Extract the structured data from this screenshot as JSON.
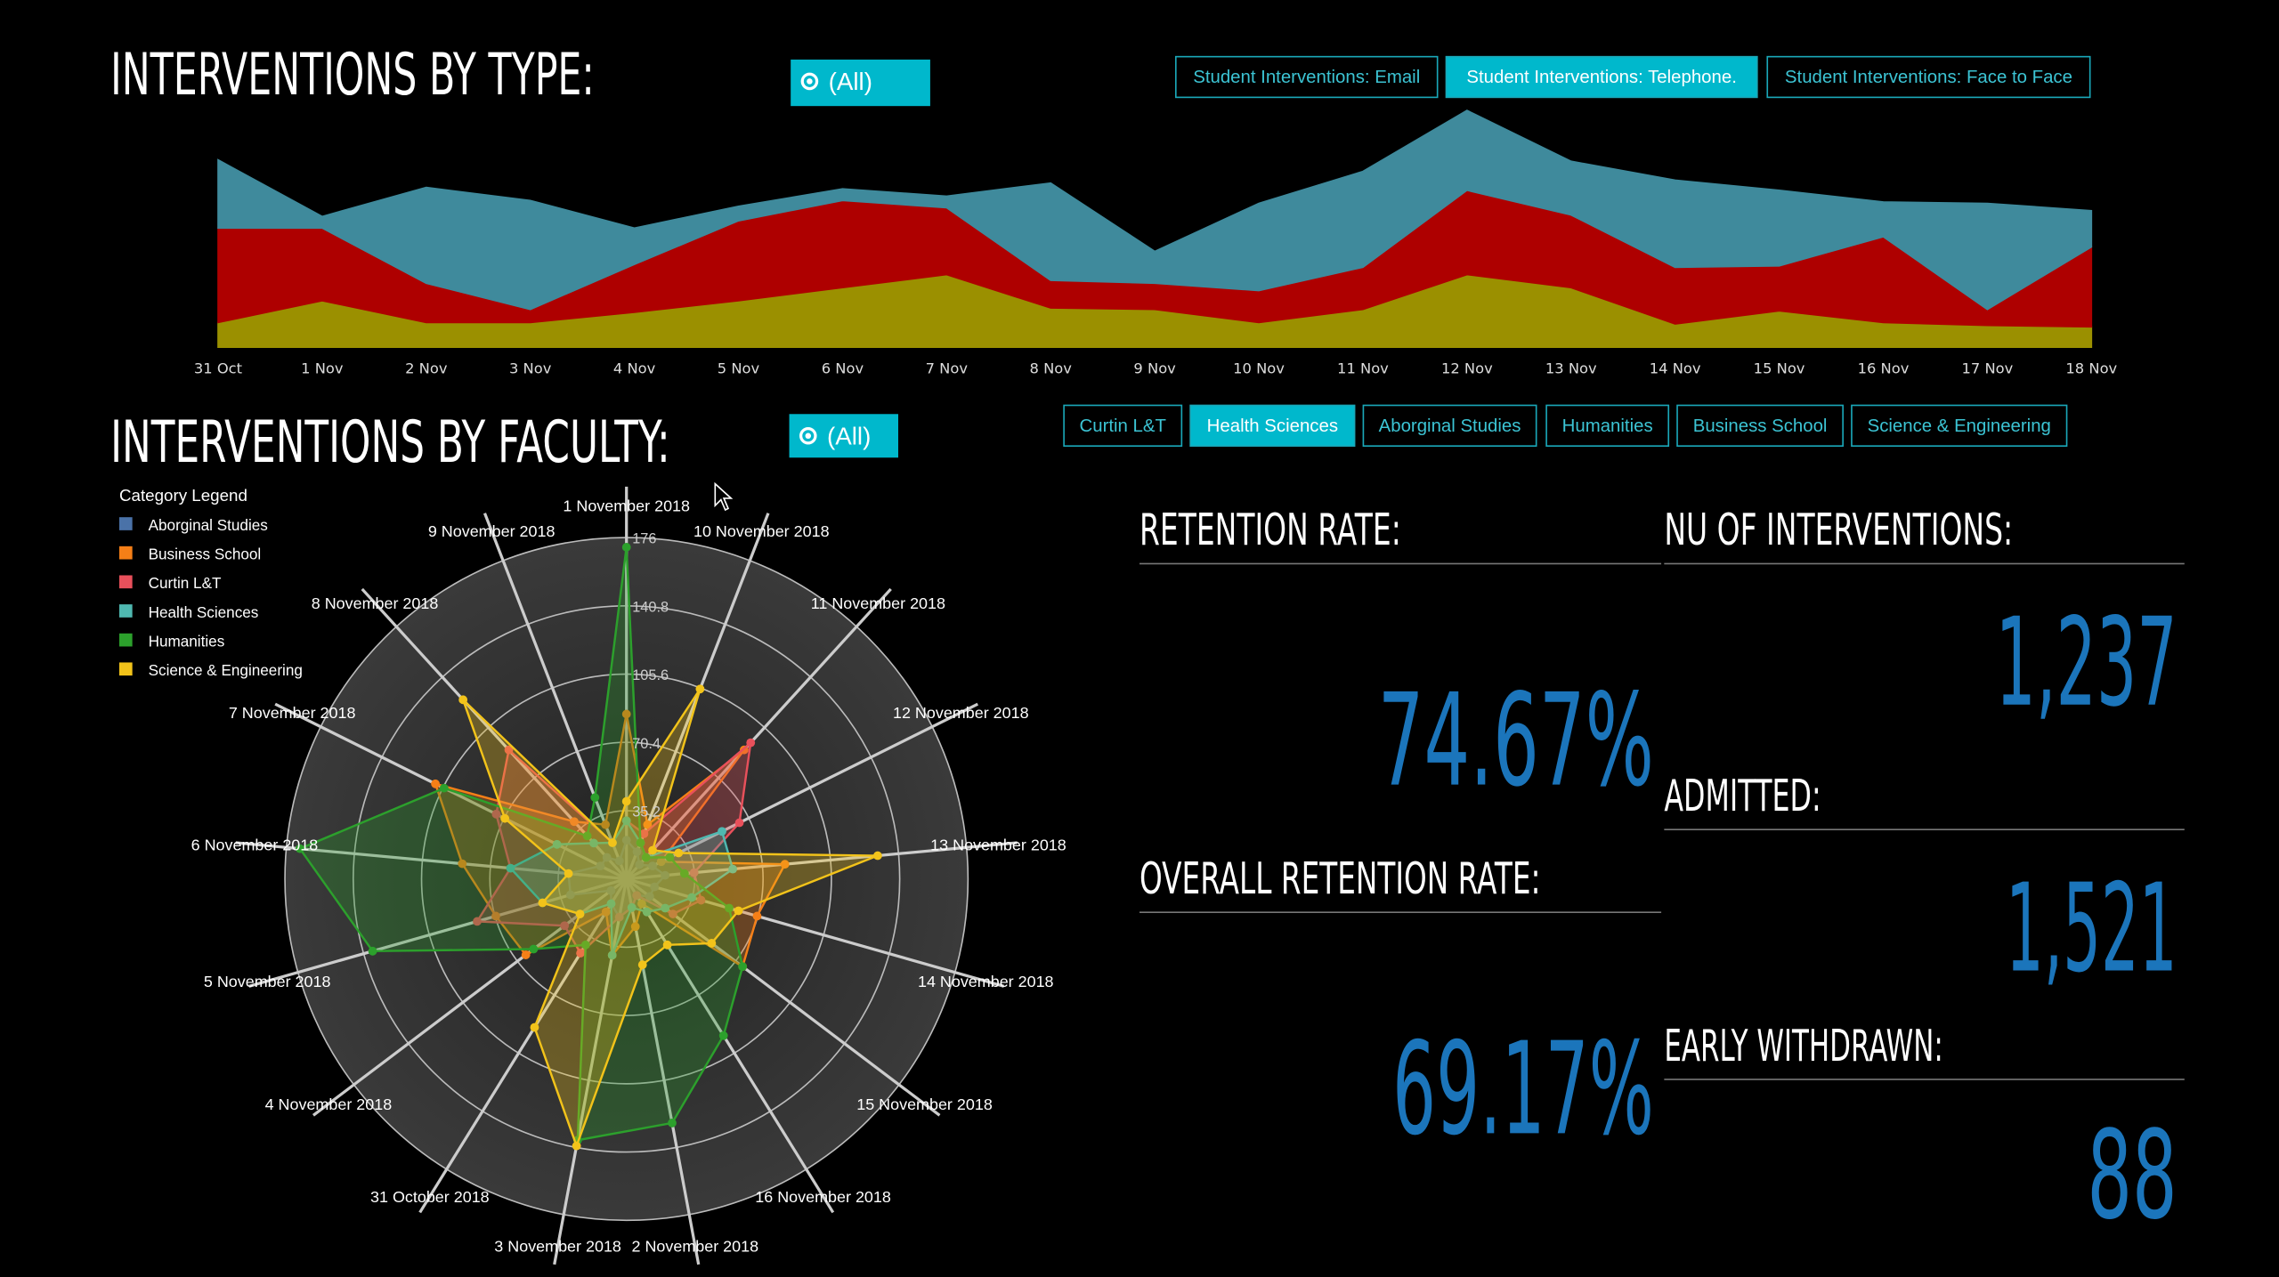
{
  "type_section": {
    "title": "INTERVENTIONS BY TYPE:",
    "filter": "(All)"
  },
  "faculty_section": {
    "title": "INTERVENTIONS BY FACULTY:",
    "filter": "(All)",
    "buttons": [
      "Curtin L&T",
      "Health Sciences",
      "Aborginal Studies",
      "Humanities",
      "Business School",
      "Science & Engineering"
    ],
    "selected": 1
  },
  "kpis": [
    {
      "label": "RETENTION RATE:",
      "value": "74.67%"
    },
    {
      "label": "OVERALL RETENTION RATE:",
      "value": "69.17%"
    },
    {
      "label": "NU OF INTERVENTIONS:",
      "value": "1,237"
    },
    {
      "label": "ADMITTED:",
      "value": "1,521"
    },
    {
      "label": "EARLY WITHDRAWN:",
      "value": "88"
    }
  ],
  "chart_data": [
    {
      "type": "area",
      "stacked": true,
      "selected": 1,
      "categories": [
        "31 Oct",
        "1 Nov",
        "2 Nov",
        "3 Nov",
        "4 Nov",
        "5 Nov",
        "6 Nov",
        "7 Nov",
        "8 Nov",
        "9 Nov",
        "10 Nov",
        "11 Nov",
        "12 Nov",
        "13 Nov",
        "14 Nov",
        "15 Nov",
        "16 Nov",
        "17 Nov",
        "18 Nov"
      ],
      "series": [
        {
          "name": "Student Interventions: Email",
          "color": "#9b9000",
          "values": [
            17,
            32,
            17,
            17,
            24,
            32,
            41,
            50,
            27,
            26,
            17,
            26,
            50,
            41,
            16,
            25,
            17,
            15,
            14
          ]
        },
        {
          "name": "Student Interventions: Telephone.",
          "color": "#ae0000",
          "values": [
            65,
            50,
            27,
            9,
            33,
            55,
            60,
            46,
            19,
            18,
            22,
            29,
            58,
            50,
            39,
            31,
            59,
            11,
            55
          ]
        },
        {
          "name": "Student Interventions: Face to Face",
          "color": "#3f8a9c",
          "values": [
            47,
            8,
            66,
            75,
            25,
            10,
            8,
            8,
            67,
            22,
            60,
            66,
            55,
            37,
            60,
            52,
            24,
            73,
            25
          ]
        }
      ]
    },
    {
      "type": "radar",
      "legend_title": "Category Legend",
      "categories": [
        "1 November 2018",
        "10 November 2018",
        "11 November 2018",
        "12 November 2018",
        "13 November 2018",
        "14 November 2018",
        "15 November 2018",
        "16 November 2018",
        "2 November 2018",
        "3 November 2018",
        "31 October 2018",
        "4 November 2018",
        "5 November 2018",
        "6 November 2018",
        "7 November 2018",
        "8 November 2018",
        "9 November 2018"
      ],
      "rlim": [
        0,
        176
      ],
      "rticks": [
        35.2,
        70.4,
        105.6,
        140.8,
        176
      ],
      "series": [
        {
          "name": "Aborginal Studies",
          "color": "#4a72a8",
          "values": [
            20,
            15,
            10,
            15,
            20,
            15,
            15,
            10,
            15,
            20,
            15,
            10,
            30,
            30,
            15,
            15,
            10
          ]
        },
        {
          "name": "Business School",
          "color": "#f57f17",
          "values": [
            85,
            30,
            90,
            20,
            82,
            70,
            75,
            15,
            25,
            40,
            20,
            65,
            70,
            85,
            110,
            40,
            30
          ]
        },
        {
          "name": "Curtin L&T",
          "color": "#e8505b",
          "values": [
            30,
            25,
            95,
            65,
            35,
            40,
            30,
            10,
            15,
            20,
            45,
            40,
            80,
            60,
            75,
            90,
            20
          ]
        },
        {
          "name": "Health Sciences",
          "color": "#4fb8b0",
          "values": [
            30,
            20,
            15,
            55,
            55,
            35,
            25,
            20,
            15,
            40,
            15,
            30,
            45,
            60,
            40,
            25,
            20
          ]
        },
        {
          "name": "Humanities",
          "color": "#2ca02c",
          "values": [
            171,
            20,
            15,
            25,
            30,
            55,
            75,
            95,
            128,
            137,
            40,
            60,
            136,
            169,
            105,
            30,
            45
          ]
        },
        {
          "name": "Science & Engineering",
          "color": "#f2c31a",
          "values": [
            40,
            105,
            20,
            30,
            130,
            60,
            55,
            40,
            45,
            140,
            90,
            30,
            45,
            30,
            70,
            125,
            20
          ]
        }
      ]
    }
  ]
}
